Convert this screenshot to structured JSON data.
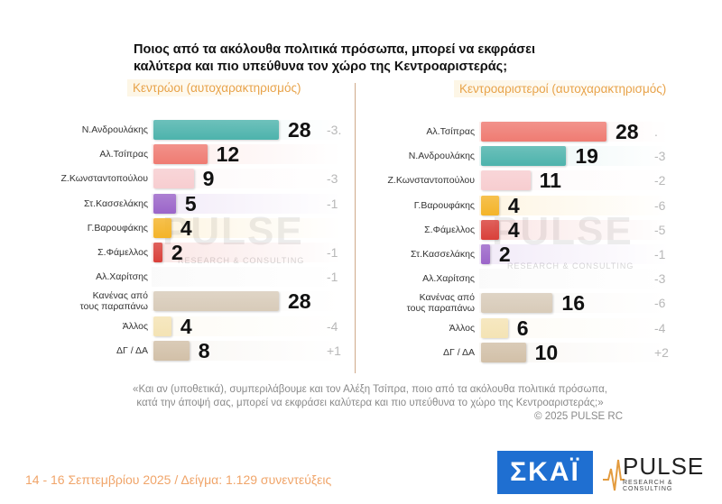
{
  "title": "Ποιος από τα ακόλουθα πολιτικά πρόσωπα, μπορεί να εκφράσει καλύτερα και πιο υπεύθυνα τον χώρο της Κεντροαριστεράς;",
  "watermark": {
    "word": "PULSE",
    "sub": "RESEARCH & CONSULTING"
  },
  "chart_data": [
    {
      "type": "bar",
      "subtitle": "Κεντρώοι (αυτοχαρακτηρισμός)",
      "categories": [
        "Ν.Ανδρουλάκης",
        "Αλ.Τσίπρας",
        "Ζ.Κωνσταντοπούλου",
        "Στ.Κασσελάκης",
        "Γ.Βαρουφάκης",
        "Σ.Φάμελλος",
        "Αλ.Χαρίτσης",
        "Κανένας από\nτους παραπάνω",
        "Άλλος",
        "ΔΓ / ΔΑ"
      ],
      "values": [
        28,
        12,
        9,
        5,
        4,
        2,
        null,
        28,
        4,
        8
      ],
      "value_labels": [
        "28",
        "12",
        "9",
        "5",
        "4",
        "2",
        "",
        "28",
        "4",
        "8"
      ],
      "changes": [
        "-3.",
        "",
        "-3",
        "-1",
        "",
        "-1",
        "-1",
        "",
        "-4",
        "+1"
      ],
      "colors": [
        "#4db3ac",
        "#ef7b72",
        "#f7cdd0",
        "#9b65c9",
        "#f4b429",
        "#d9403a",
        "#dddddd",
        "#d8cbb9",
        "#f4e3b4",
        "#d2c0a8"
      ],
      "xlim": [
        0,
        30
      ]
    },
    {
      "type": "bar",
      "subtitle": "Κεντροαριστεροί (αυτοχαρακτηρισμός)",
      "categories": [
        "Αλ.Τσίπρας",
        "Ν.Ανδρουλάκης",
        "Ζ.Κωνσταντοπούλου",
        "Γ.Βαρουφάκης",
        "Σ.Φάμελλος",
        "Στ.Κασσελάκης",
        "Αλ.Χαρίτσης",
        "Κανένας από\nτους παραπάνω",
        "Άλλος",
        "ΔΓ / ΔΑ"
      ],
      "values": [
        28,
        19,
        11,
        4,
        4,
        2,
        null,
        16,
        6,
        10
      ],
      "value_labels": [
        "28",
        "19",
        "11",
        "4",
        "4",
        "2",
        "",
        "16",
        "6",
        "10"
      ],
      "changes": [
        ".",
        "-3",
        "-2",
        "-6",
        "-5",
        "-1",
        "-3",
        "-6",
        "-4",
        "+2"
      ],
      "colors": [
        "#ef7b72",
        "#4db3ac",
        "#f7cdd0",
        "#f4b429",
        "#d9403a",
        "#9b65c9",
        "#dddddd",
        "#d8cbb9",
        "#f4e3b4",
        "#d2c0a8"
      ],
      "xlim": [
        0,
        30
      ]
    }
  ],
  "quote": "«Και αν (υποθετικά), συμπεριλάβουμε και τον Αλέξη Τσίπρα, ποιο από τα ακόλουθα πολιτικά πρόσωπα,\nκατά την άποψή σας, μπορεί να εκφράσει καλύτερα και πιο υπεύθυνα το χώρο της Κεντροαριστεράς;»",
  "copyright": "© 2025 PULSE RC",
  "footer": "14 - 16 Σεπτεμβρίου 2025  /  Δείγμα:  1.129 συνεντεύξεις",
  "logos": {
    "skai": "ΣΚΑΪ",
    "pulse": "PULSE",
    "pulse_sub": "RESEARCH & CONSULTING"
  }
}
